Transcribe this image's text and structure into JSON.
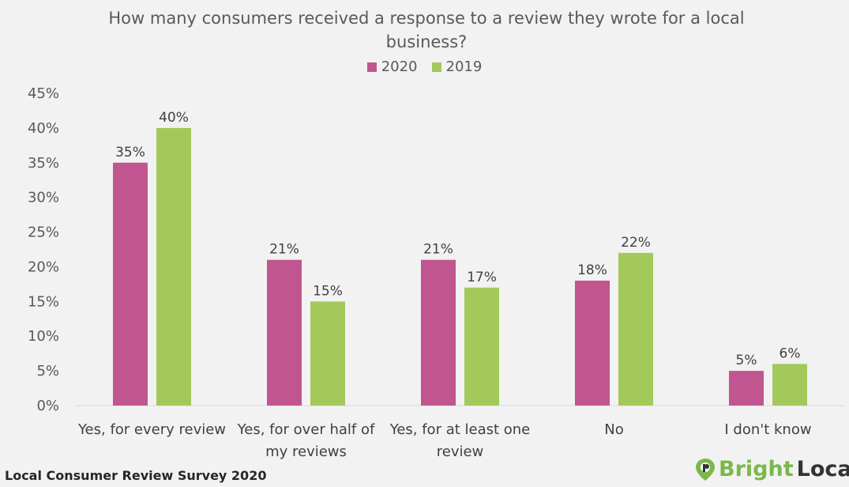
{
  "chart_data": {
    "type": "bar",
    "title": "How many consumers received a response to a review they wrote for a local business?",
    "categories": [
      [
        "Yes, for every review"
      ],
      [
        "Yes, for over half of",
        "my reviews"
      ],
      [
        "Yes, for at least one",
        "review"
      ],
      [
        "No"
      ],
      [
        "I don't know"
      ]
    ],
    "series": [
      {
        "name": "2020",
        "color": "#c0558f",
        "values": [
          35,
          21,
          21,
          18,
          5
        ],
        "labels": [
          "35%",
          "21%",
          "21%",
          "18%",
          "5%"
        ]
      },
      {
        "name": "2019",
        "color": "#a3c95a",
        "values": [
          40,
          15,
          17,
          22,
          6
        ],
        "labels": [
          "40%",
          "15%",
          "17%",
          "22%",
          "6%"
        ]
      }
    ],
    "ylim": [
      0,
      45
    ],
    "yticks": [
      "0%",
      "5%",
      "10%",
      "15%",
      "20%",
      "25%",
      "30%",
      "35%",
      "40%",
      "45%"
    ],
    "grid": false,
    "legend_position": "top-center"
  },
  "footer": "Local Consumer Review Survey 2020",
  "logo": {
    "part1": "Bright",
    "part2": "Local",
    "icon": "location-pin-icon"
  }
}
